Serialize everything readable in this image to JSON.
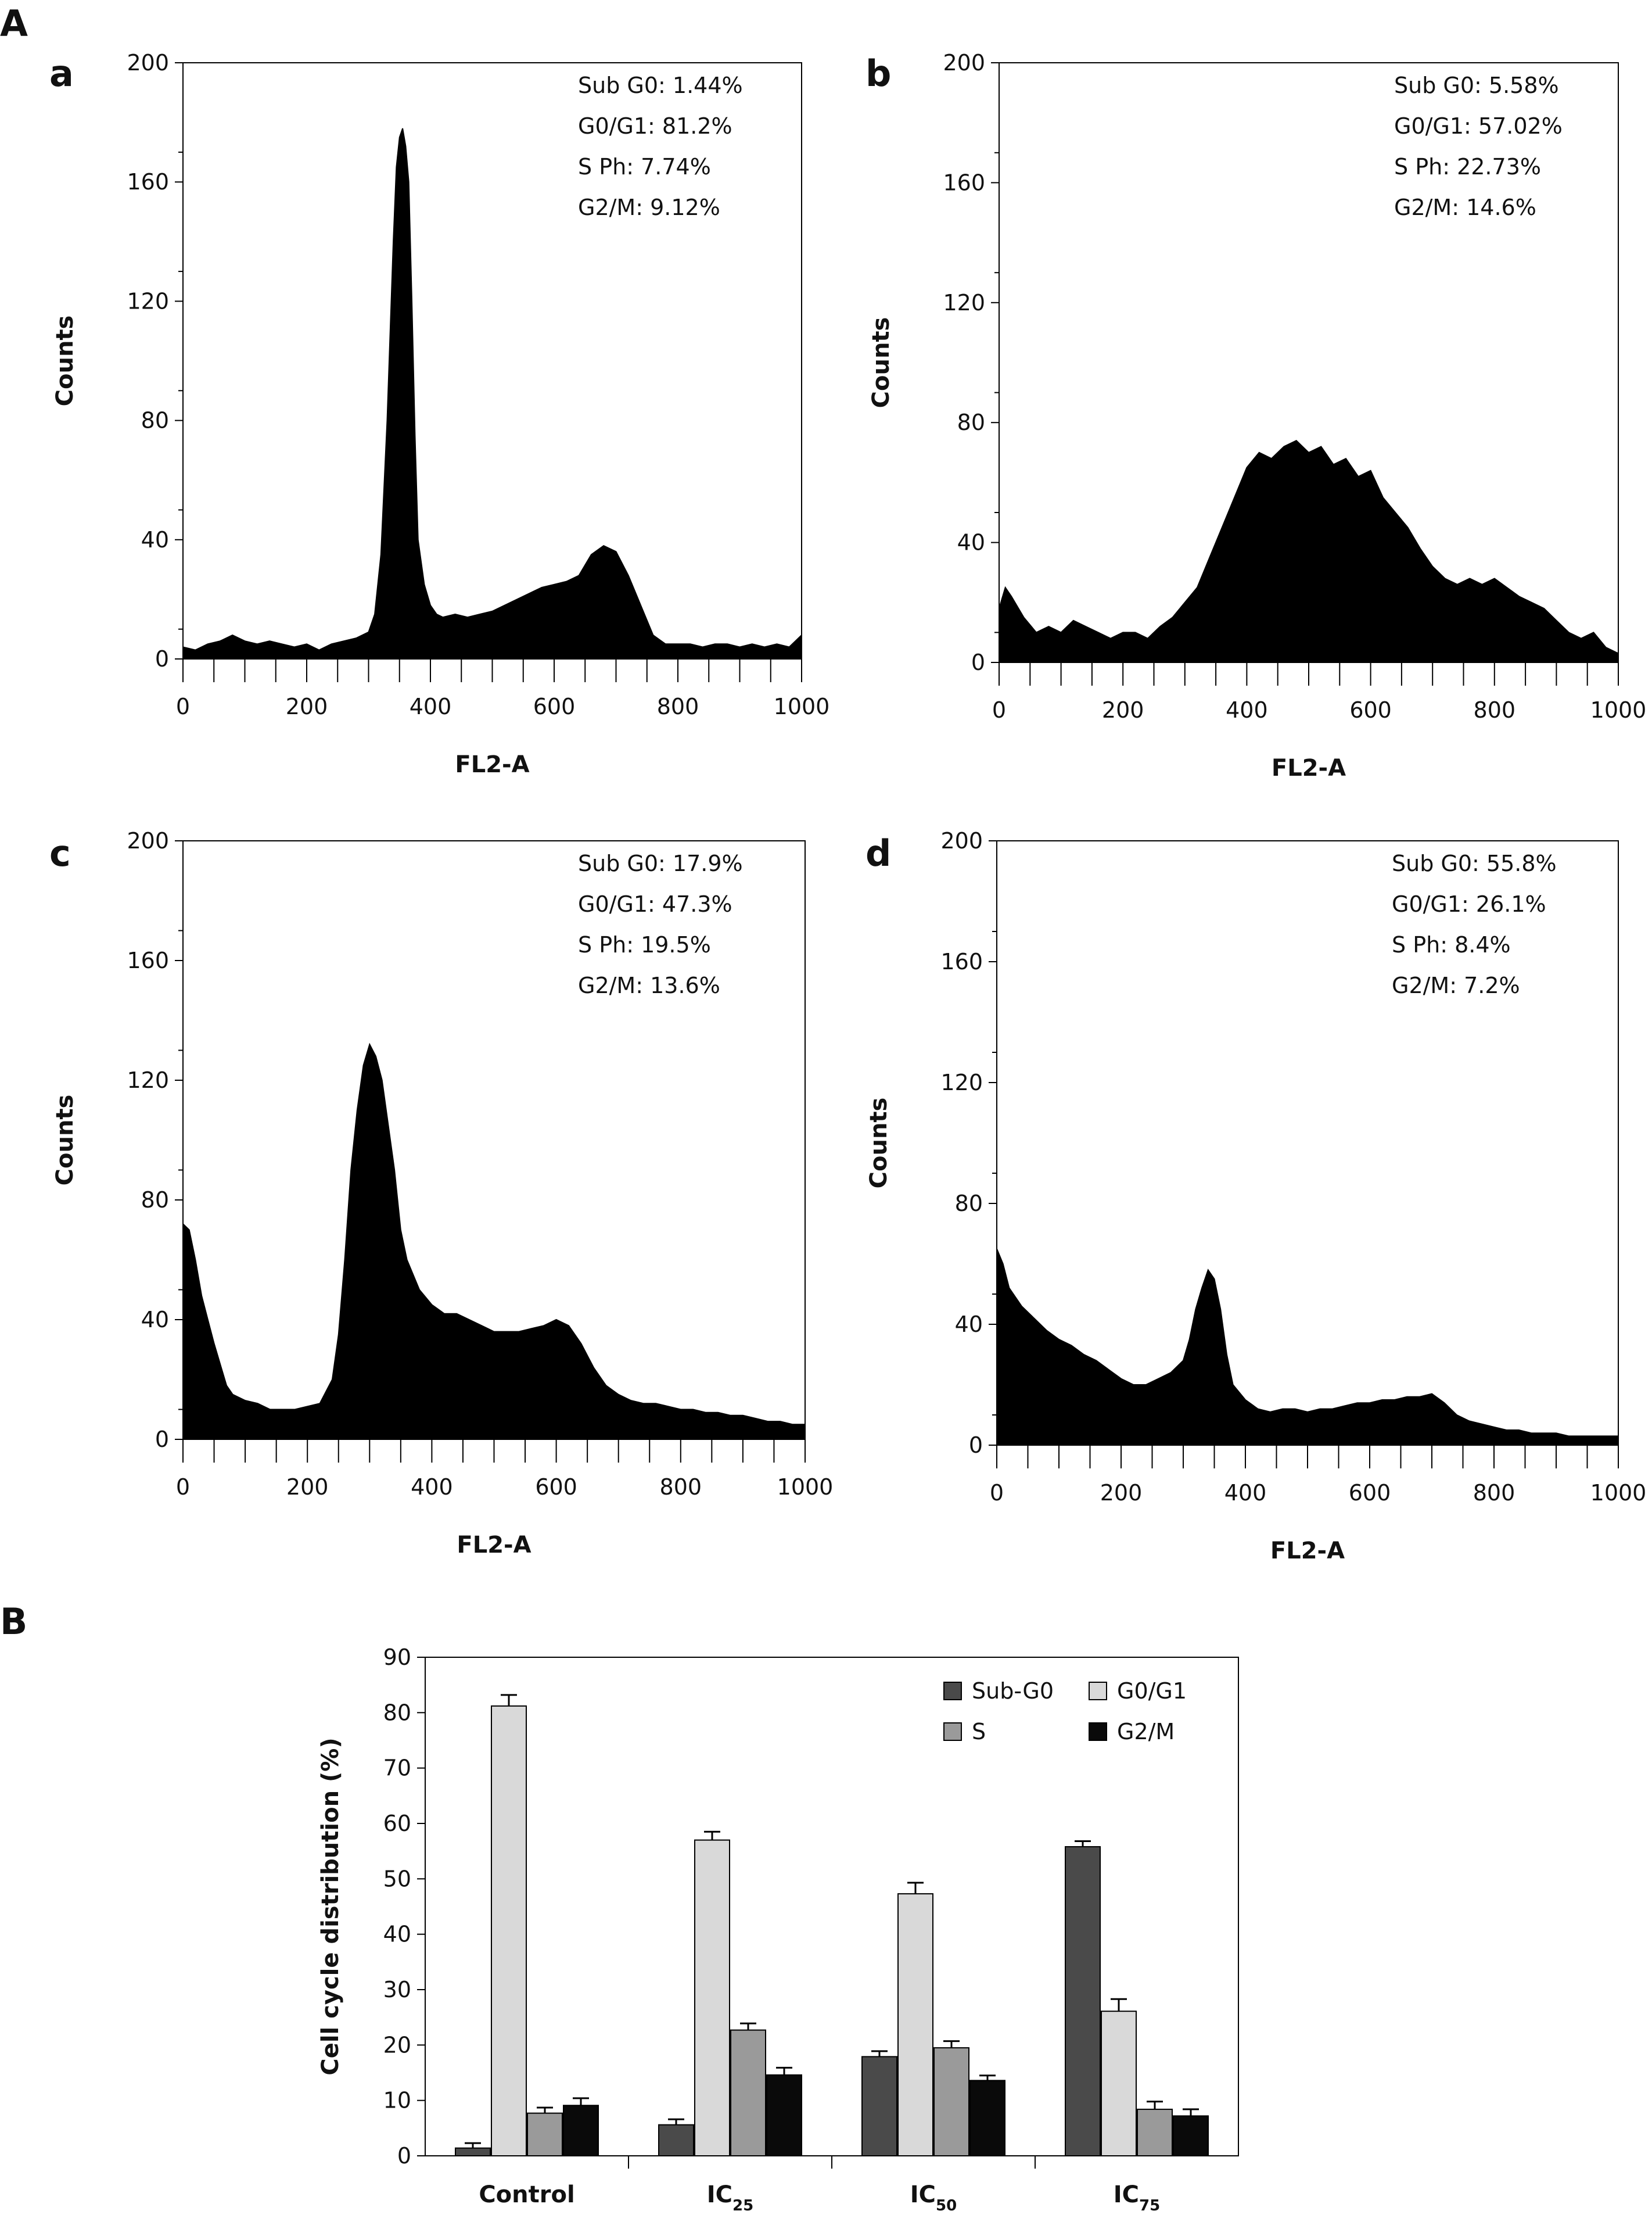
{
  "figure_labels": {
    "panel_A": "A",
    "panel_B": "B"
  },
  "chart_data": [
    {
      "id": "a",
      "type": "area",
      "subpanel_label": "a",
      "xlabel": "FL2-A",
      "ylabel": "Counts",
      "xlim": [
        0,
        1000
      ],
      "ylim": [
        0,
        200
      ],
      "xticks": [
        "0",
        "200",
        "400",
        "600",
        "800",
        "1000"
      ],
      "yticks": [
        "0",
        "40",
        "80",
        "120",
        "160",
        "200"
      ],
      "annotations": [
        "Sub G0: 1.44%",
        "G0/G1: 81.2%",
        "S Ph: 7.74%",
        "G2/M: 9.12%"
      ],
      "x": [
        0,
        20,
        40,
        60,
        80,
        100,
        120,
        140,
        160,
        180,
        200,
        220,
        240,
        260,
        280,
        300,
        310,
        320,
        330,
        340,
        345,
        350,
        355,
        360,
        365,
        370,
        375,
        380,
        390,
        400,
        410,
        420,
        440,
        460,
        480,
        500,
        520,
        540,
        560,
        580,
        600,
        620,
        640,
        660,
        680,
        700,
        720,
        740,
        760,
        780,
        800,
        820,
        840,
        860,
        880,
        900,
        920,
        940,
        960,
        980,
        1000
      ],
      "y": [
        4,
        3,
        5,
        6,
        8,
        6,
        5,
        6,
        5,
        4,
        5,
        3,
        5,
        6,
        7,
        9,
        15,
        35,
        80,
        140,
        165,
        175,
        178,
        172,
        160,
        120,
        75,
        40,
        25,
        18,
        15,
        14,
        15,
        14,
        15,
        16,
        18,
        20,
        22,
        24,
        25,
        26,
        28,
        35,
        38,
        36,
        28,
        18,
        8,
        5,
        5,
        5,
        4,
        5,
        5,
        4,
        5,
        4,
        5,
        4,
        8
      ]
    },
    {
      "id": "b",
      "type": "area",
      "subpanel_label": "b",
      "xlabel": "FL2-A",
      "ylabel": "Counts",
      "xlim": [
        0,
        1000
      ],
      "ylim": [
        0,
        200
      ],
      "xticks": [
        "0",
        "200",
        "400",
        "600",
        "800",
        "1000"
      ],
      "yticks": [
        "0",
        "40",
        "80",
        "120",
        "160",
        "200"
      ],
      "annotations": [
        "Sub G0: 5.58%",
        "G0/G1: 57.02%",
        "S Ph: 22.73%",
        "G2/M: 14.6%"
      ],
      "x": [
        0,
        10,
        20,
        40,
        60,
        80,
        100,
        120,
        140,
        160,
        180,
        200,
        220,
        240,
        260,
        280,
        300,
        320,
        340,
        360,
        380,
        400,
        420,
        440,
        460,
        480,
        500,
        520,
        540,
        560,
        580,
        600,
        620,
        640,
        660,
        680,
        700,
        720,
        740,
        760,
        780,
        800,
        820,
        840,
        860,
        880,
        900,
        920,
        940,
        960,
        980,
        1000
      ],
      "y": [
        18,
        25,
        22,
        15,
        10,
        12,
        10,
        14,
        12,
        10,
        8,
        10,
        10,
        8,
        12,
        15,
        20,
        25,
        35,
        45,
        55,
        65,
        70,
        68,
        72,
        74,
        70,
        72,
        66,
        68,
        62,
        64,
        55,
        50,
        45,
        38,
        32,
        28,
        26,
        28,
        26,
        28,
        25,
        22,
        20,
        18,
        14,
        10,
        8,
        10,
        5,
        3
      ]
    },
    {
      "id": "c",
      "type": "area",
      "subpanel_label": "c",
      "xlabel": "FL2-A",
      "ylabel": "Counts",
      "xlim": [
        0,
        1000
      ],
      "ylim": [
        0,
        200
      ],
      "xticks": [
        "0",
        "200",
        "400",
        "600",
        "800",
        "1000"
      ],
      "yticks": [
        "0",
        "40",
        "80",
        "120",
        "160",
        "200"
      ],
      "annotations": [
        "Sub G0: 17.9%",
        "G0/G1: 47.3%",
        "S Ph: 19.5%",
        "G2/M: 13.6%"
      ],
      "x": [
        0,
        10,
        20,
        30,
        40,
        50,
        60,
        70,
        80,
        100,
        120,
        140,
        160,
        180,
        200,
        220,
        240,
        250,
        260,
        270,
        280,
        290,
        300,
        310,
        320,
        330,
        340,
        350,
        360,
        380,
        400,
        420,
        440,
        460,
        480,
        500,
        520,
        540,
        560,
        580,
        600,
        620,
        640,
        660,
        680,
        700,
        720,
        740,
        760,
        780,
        800,
        820,
        840,
        860,
        880,
        900,
        920,
        940,
        960,
        980,
        1000
      ],
      "y": [
        72,
        70,
        60,
        48,
        40,
        32,
        25,
        18,
        15,
        13,
        12,
        10,
        10,
        10,
        11,
        12,
        20,
        35,
        60,
        90,
        110,
        125,
        132,
        128,
        120,
        105,
        90,
        70,
        60,
        50,
        45,
        42,
        42,
        40,
        38,
        36,
        36,
        36,
        37,
        38,
        40,
        38,
        32,
        24,
        18,
        15,
        13,
        12,
        12,
        11,
        10,
        10,
        9,
        9,
        8,
        8,
        7,
        6,
        6,
        5,
        5
      ]
    },
    {
      "id": "d",
      "type": "area",
      "subpanel_label": "d",
      "xlabel": "FL2-A",
      "ylabel": "Counts",
      "xlim": [
        0,
        1000
      ],
      "ylim": [
        0,
        200
      ],
      "xticks": [
        "0",
        "200",
        "400",
        "600",
        "800",
        "1000"
      ],
      "yticks": [
        "0",
        "40",
        "80",
        "120",
        "160",
        "200"
      ],
      "annotations": [
        "Sub G0: 55.8%",
        "G0/G1: 26.1%",
        "S Ph: 8.4%",
        "G2/M: 7.2%"
      ],
      "x": [
        0,
        10,
        20,
        40,
        60,
        80,
        100,
        120,
        140,
        160,
        180,
        200,
        220,
        240,
        260,
        280,
        300,
        310,
        320,
        330,
        340,
        350,
        360,
        370,
        380,
        400,
        420,
        440,
        460,
        480,
        500,
        520,
        540,
        560,
        580,
        600,
        620,
        640,
        660,
        680,
        700,
        720,
        740,
        760,
        780,
        800,
        820,
        840,
        860,
        880,
        900,
        920,
        940,
        960,
        980,
        1000
      ],
      "y": [
        65,
        60,
        52,
        46,
        42,
        38,
        35,
        33,
        30,
        28,
        25,
        22,
        20,
        20,
        22,
        24,
        28,
        35,
        45,
        52,
        58,
        55,
        45,
        30,
        20,
        15,
        12,
        11,
        12,
        12,
        11,
        12,
        12,
        13,
        14,
        14,
        15,
        15,
        16,
        16,
        17,
        14,
        10,
        8,
        7,
        6,
        5,
        5,
        4,
        4,
        4,
        3,
        3,
        3,
        3,
        3
      ]
    },
    {
      "id": "B",
      "type": "bar",
      "xlabel": "",
      "ylabel": "Cell cycle distribution (%)",
      "ylim": [
        0,
        90
      ],
      "yticks": [
        "0",
        "10",
        "20",
        "30",
        "40",
        "50",
        "60",
        "70",
        "80",
        "90"
      ],
      "categories": [
        {
          "main": "Control",
          "sub": ""
        },
        {
          "main": "IC",
          "sub": "25"
        },
        {
          "main": "IC",
          "sub": "50"
        },
        {
          "main": "IC",
          "sub": "75"
        }
      ],
      "legend_position": "top-right",
      "series": [
        {
          "name": "Sub-G0",
          "color": "#4a4a4a",
          "values": [
            1.4,
            5.6,
            17.9,
            55.8
          ],
          "errors": [
            0.9,
            1.0,
            1.0,
            1.0
          ]
        },
        {
          "name": "G0/G1",
          "color": "#d9d9d9",
          "values": [
            81.2,
            57.0,
            47.3,
            26.1
          ],
          "errors": [
            2.0,
            1.5,
            2.0,
            2.2
          ]
        },
        {
          "name": "S",
          "color": "#9a9a9a",
          "values": [
            7.7,
            22.7,
            19.5,
            8.4
          ],
          "errors": [
            1.0,
            1.2,
            1.2,
            1.4
          ]
        },
        {
          "name": "G2/M",
          "color": "#0a0a0a",
          "values": [
            9.1,
            14.6,
            13.6,
            7.2
          ],
          "errors": [
            1.3,
            1.3,
            0.9,
            1.2
          ]
        }
      ]
    }
  ]
}
